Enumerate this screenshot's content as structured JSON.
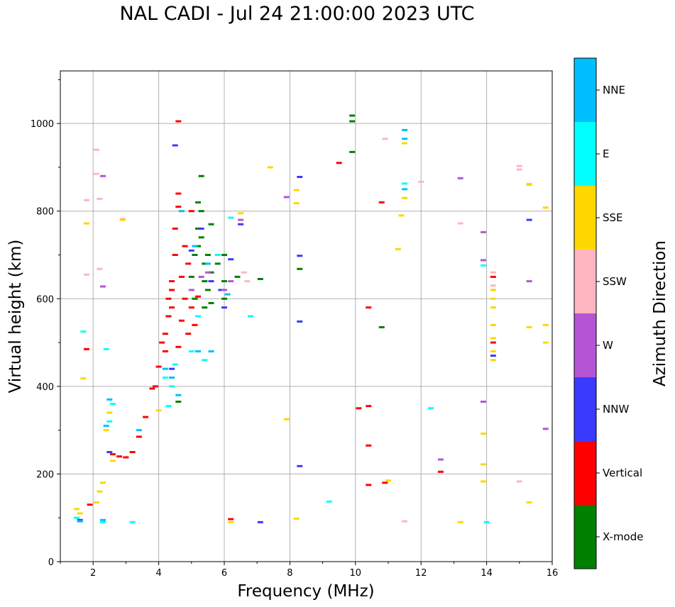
{
  "chart_data": {
    "type": "scatter",
    "title": "NAL CADI - Jul 24 21:00:00 2023 UTC",
    "xlabel": "Frequency (MHz)",
    "ylabel": "Virtual height (km)",
    "xlim": [
      1,
      16
    ],
    "ylim": [
      0,
      1120
    ],
    "xticks": [
      2,
      4,
      6,
      8,
      10,
      12,
      14,
      16
    ],
    "yticks": [
      0,
      200,
      400,
      600,
      800,
      1000
    ],
    "grid": true,
    "colorbar": {
      "label": "Azimuth Direction",
      "categories": [
        {
          "name": "X-mode",
          "color": "#008000"
        },
        {
          "name": "Vertical",
          "color": "#ff0000"
        },
        {
          "name": "NNW",
          "color": "#3a3aff"
        },
        {
          "name": "W",
          "color": "#b555d6"
        },
        {
          "name": "SSW",
          "color": "#ffb6c1"
        },
        {
          "name": "SSE",
          "color": "#ffd700"
        },
        {
          "name": "E",
          "color": "#00ffff"
        },
        {
          "name": "NNE",
          "color": "#00bfff"
        }
      ]
    },
    "series": [
      {
        "name": "X-mode",
        "points": [
          [
            4.6,
            365
          ],
          [
            5.0,
            650
          ],
          [
            5.1,
            700
          ],
          [
            5.2,
            720
          ],
          [
            5.2,
            760
          ],
          [
            5.3,
            800
          ],
          [
            5.3,
            880
          ],
          [
            5.4,
            640
          ],
          [
            5.4,
            580
          ],
          [
            5.5,
            620
          ],
          [
            5.5,
            700
          ],
          [
            5.6,
            770
          ],
          [
            5.6,
            660
          ],
          [
            5.8,
            680
          ],
          [
            6.0,
            700
          ],
          [
            6.0,
            640
          ],
          [
            6.0,
            600
          ],
          [
            6.4,
            650
          ],
          [
            7.1,
            645
          ],
          [
            8.3,
            668
          ],
          [
            9.9,
            1005
          ],
          [
            9.9,
            935
          ],
          [
            9.9,
            1018
          ],
          [
            10.8,
            535
          ],
          [
            5.2,
            820
          ],
          [
            5.3,
            740
          ],
          [
            5.1,
            600
          ],
          [
            5.6,
            590
          ],
          [
            5.4,
            680
          ]
        ]
      },
      {
        "name": "Vertical",
        "points": [
          [
            2.6,
            245
          ],
          [
            2.8,
            240
          ],
          [
            3.0,
            238
          ],
          [
            3.2,
            250
          ],
          [
            3.4,
            285
          ],
          [
            3.6,
            330
          ],
          [
            3.8,
            395
          ],
          [
            4.0,
            445
          ],
          [
            4.2,
            480
          ],
          [
            4.2,
            520
          ],
          [
            4.3,
            560
          ],
          [
            4.3,
            600
          ],
          [
            4.4,
            640
          ],
          [
            4.5,
            700
          ],
          [
            4.5,
            760
          ],
          [
            4.6,
            810
          ],
          [
            4.6,
            840
          ],
          [
            4.6,
            1005
          ],
          [
            4.7,
            550
          ],
          [
            4.8,
            600
          ],
          [
            4.9,
            520
          ],
          [
            5.0,
            580
          ],
          [
            5.1,
            540
          ],
          [
            4.7,
            650
          ],
          [
            4.8,
            720
          ],
          [
            4.9,
            680
          ],
          [
            5.0,
            800
          ],
          [
            4.4,
            580
          ],
          [
            4.1,
            500
          ],
          [
            3.9,
            400
          ],
          [
            1.8,
            485
          ],
          [
            1.9,
            130
          ],
          [
            9.5,
            910
          ],
          [
            10.4,
            580
          ],
          [
            10.8,
            820
          ],
          [
            10.1,
            350
          ],
          [
            10.4,
            355
          ],
          [
            10.4,
            265
          ],
          [
            10.4,
            175
          ],
          [
            10.9,
            180
          ],
          [
            12.6,
            205
          ],
          [
            14.2,
            650
          ],
          [
            14.2,
            500
          ],
          [
            6.2,
            97
          ],
          [
            4.4,
            620
          ],
          [
            4.6,
            490
          ],
          [
            5.2,
            605
          ]
        ]
      },
      {
        "name": "NNW",
        "points": [
          [
            1.6,
            95
          ],
          [
            4.5,
            950
          ],
          [
            8.3,
            878
          ],
          [
            8.3,
            698
          ],
          [
            8.3,
            548
          ],
          [
            8.3,
            218
          ],
          [
            6.0,
            580
          ],
          [
            6.2,
            690
          ],
          [
            6.5,
            770
          ],
          [
            5.3,
            760
          ],
          [
            5.6,
            640
          ],
          [
            5.9,
            620
          ],
          [
            14.2,
            470
          ],
          [
            15.3,
            780
          ],
          [
            7.1,
            90
          ],
          [
            2.5,
            250
          ],
          [
            4.4,
            440
          ],
          [
            5.0,
            710
          ]
        ]
      },
      {
        "name": "W",
        "points": [
          [
            2.3,
            880
          ],
          [
            2.3,
            628
          ],
          [
            6.2,
            640
          ],
          [
            6.5,
            780
          ],
          [
            5.5,
            660
          ],
          [
            5.0,
            620
          ],
          [
            13.2,
            875
          ],
          [
            12.6,
            233
          ],
          [
            13.9,
            752
          ],
          [
            13.9,
            688
          ],
          [
            13.9,
            365
          ],
          [
            15.3,
            640
          ],
          [
            15.8,
            303
          ],
          [
            7.9,
            832
          ],
          [
            5.3,
            650
          ],
          [
            6.0,
            620
          ]
        ]
      },
      {
        "name": "SSW",
        "points": [
          [
            1.8,
            825
          ],
          [
            2.1,
            940
          ],
          [
            2.1,
            885
          ],
          [
            2.2,
            828
          ],
          [
            2.2,
            668
          ],
          [
            1.8,
            655
          ],
          [
            2.9,
            782
          ],
          [
            6.6,
            660
          ],
          [
            6.7,
            640
          ],
          [
            13.2,
            772
          ],
          [
            14.2,
            630
          ],
          [
            15.0,
            903
          ],
          [
            15.0,
            895
          ],
          [
            15.3,
            862
          ],
          [
            12.0,
            867
          ],
          [
            11.5,
            92
          ],
          [
            10.9,
            965
          ],
          [
            15.0,
            183
          ],
          [
            14.2,
            660
          ]
        ]
      },
      {
        "name": "SSE",
        "points": [
          [
            1.5,
            120
          ],
          [
            1.6,
            110
          ],
          [
            1.8,
            772
          ],
          [
            1.7,
            418
          ],
          [
            2.1,
            135
          ],
          [
            2.2,
            160
          ],
          [
            2.3,
            180
          ],
          [
            2.4,
            300
          ],
          [
            2.5,
            340
          ],
          [
            2.6,
            230
          ],
          [
            2.9,
            780
          ],
          [
            4.0,
            345
          ],
          [
            6.2,
            90
          ],
          [
            6.5,
            795
          ],
          [
            7.4,
            900
          ],
          [
            7.9,
            325
          ],
          [
            8.2,
            848
          ],
          [
            8.2,
            818
          ],
          [
            8.2,
            98
          ],
          [
            11.0,
            185
          ],
          [
            11.3,
            713
          ],
          [
            11.5,
            830
          ],
          [
            11.5,
            955
          ],
          [
            11.4,
            790
          ],
          [
            13.2,
            90
          ],
          [
            13.9,
            292
          ],
          [
            13.9,
            222
          ],
          [
            13.9,
            183
          ],
          [
            14.2,
            620
          ],
          [
            14.2,
            580
          ],
          [
            14.2,
            540
          ],
          [
            14.2,
            510
          ],
          [
            14.2,
            480
          ],
          [
            14.2,
            460
          ],
          [
            15.3,
            535
          ],
          [
            15.3,
            860
          ],
          [
            15.8,
            808
          ],
          [
            15.8,
            540
          ],
          [
            15.8,
            500
          ],
          [
            15.3,
            135
          ],
          [
            14.2,
            600
          ]
        ]
      },
      {
        "name": "E",
        "points": [
          [
            1.5,
            100
          ],
          [
            1.7,
            525
          ],
          [
            2.3,
            90
          ],
          [
            2.4,
            485
          ],
          [
            2.5,
            320
          ],
          [
            2.6,
            360
          ],
          [
            3.2,
            90
          ],
          [
            4.2,
            420
          ],
          [
            4.4,
            400
          ],
          [
            4.5,
            450
          ],
          [
            5.0,
            480
          ],
          [
            5.2,
            560
          ],
          [
            5.8,
            700
          ],
          [
            6.2,
            785
          ],
          [
            6.8,
            560
          ],
          [
            9.2,
            137
          ],
          [
            12.3,
            350
          ],
          [
            13.9,
            676
          ],
          [
            14.0,
            90
          ],
          [
            11.5,
            863
          ],
          [
            5.4,
            460
          ],
          [
            4.3,
            355
          ]
        ]
      },
      {
        "name": "NNE",
        "points": [
          [
            1.6,
            92
          ],
          [
            2.3,
            95
          ],
          [
            2.4,
            310
          ],
          [
            2.5,
            370
          ],
          [
            4.2,
            440
          ],
          [
            4.4,
            420
          ],
          [
            4.7,
            800
          ],
          [
            5.1,
            720
          ],
          [
            5.2,
            480
          ],
          [
            5.5,
            680
          ],
          [
            5.6,
            480
          ],
          [
            6.1,
            610
          ],
          [
            11.5,
            985
          ],
          [
            11.5,
            965
          ],
          [
            11.5,
            850
          ],
          [
            3.4,
            300
          ],
          [
            4.6,
            380
          ]
        ]
      }
    ]
  }
}
